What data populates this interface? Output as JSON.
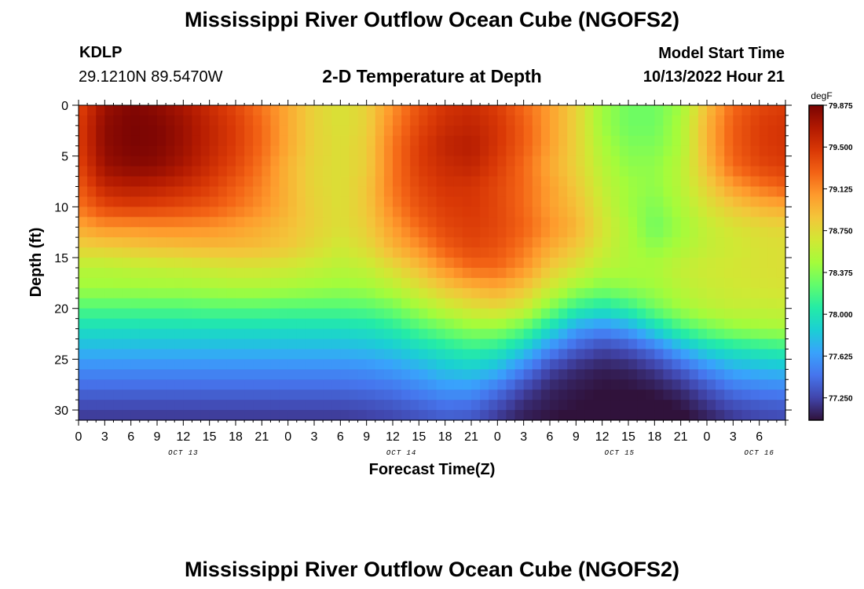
{
  "header": {
    "title": "Mississippi River Outflow Ocean Cube (NGOFS2)",
    "station_id": "KDLP",
    "coordinates": "29.1210N  89.5470W",
    "subtitle": "2-D Temperature at Depth",
    "model_start_label": "Model Start Time",
    "model_start_value": "10/13/2022 Hour 21"
  },
  "footer": {
    "title": "Mississippi River Outflow Ocean Cube (NGOFS2)"
  },
  "chart_data": {
    "type": "heatmap",
    "title": "2-D Temperature at Depth",
    "xlabel": "Forecast Time(Z)",
    "ylabel": "Depth (ft)",
    "x_range_hours": [
      0,
      81
    ],
    "x_tick_labels": [
      "0",
      "3",
      "6",
      "9",
      "12",
      "15",
      "18",
      "21",
      "0",
      "3",
      "6",
      "9",
      "12",
      "15",
      "18",
      "21",
      "0",
      "3",
      "6",
      "9",
      "12",
      "15",
      "18",
      "21",
      "0",
      "3",
      "6"
    ],
    "date_labels": [
      {
        "label": "OCT 13",
        "hour": 12
      },
      {
        "label": "OCT 14",
        "hour": 37
      },
      {
        "label": "OCT 15",
        "hour": 62
      },
      {
        "label": "OCT 16",
        "hour": 78
      }
    ],
    "ylim": [
      0,
      31
    ],
    "y_ticks": [
      0,
      5,
      10,
      15,
      20,
      25,
      30
    ],
    "y_inverted": true,
    "colorbar": {
      "unit": "degF",
      "min": 77.05,
      "max": 79.875,
      "ticks": [
        79.875,
        79.5,
        79.125,
        78.75,
        78.375,
        78.0,
        77.625,
        77.25
      ],
      "tick_labels": [
        "79.875",
        "79.500",
        "79.125",
        "78.750",
        "78.375",
        "78.000",
        "77.625",
        "77.250"
      ],
      "colormap": [
        "#30123b",
        "#4145ab",
        "#4675ed",
        "#39a2fc",
        "#1bcfd4",
        "#24eca6",
        "#61fc6c",
        "#a4fc3b",
        "#d1e834",
        "#f3c63a",
        "#fe9b2d",
        "#f36315",
        "#d93806",
        "#b11901",
        "#7a0403"
      ]
    },
    "time_hours": [
      0,
      3,
      6,
      9,
      12,
      15,
      18,
      21,
      24,
      27,
      30,
      33,
      36,
      39,
      42,
      45,
      48,
      51,
      54,
      57,
      60,
      63,
      66,
      69,
      72,
      75,
      78,
      81
    ],
    "depth_ft": [
      0,
      2,
      4,
      6,
      8,
      10,
      12,
      14,
      16,
      18,
      20,
      22,
      24,
      26,
      28,
      30,
      31
    ],
    "temperature_degF": [
      [
        79.4,
        79.75,
        79.85,
        79.8,
        79.7,
        79.55,
        79.4,
        79.2,
        79.0,
        78.8,
        78.7,
        78.8,
        79.1,
        79.35,
        79.5,
        79.55,
        79.45,
        79.25,
        79.05,
        78.8,
        78.45,
        78.3,
        78.3,
        78.45,
        78.9,
        79.25,
        79.4,
        79.45
      ],
      [
        79.45,
        79.8,
        79.87,
        79.85,
        79.75,
        79.6,
        79.45,
        79.25,
        79.0,
        78.8,
        78.7,
        78.8,
        79.15,
        79.4,
        79.55,
        79.6,
        79.5,
        79.3,
        79.05,
        78.8,
        78.45,
        78.3,
        78.3,
        78.5,
        78.95,
        79.3,
        79.45,
        79.5
      ],
      [
        79.45,
        79.8,
        79.87,
        79.85,
        79.75,
        79.6,
        79.45,
        79.25,
        79.0,
        78.8,
        78.72,
        78.82,
        79.2,
        79.45,
        79.6,
        79.65,
        79.5,
        79.3,
        79.05,
        78.8,
        78.5,
        78.35,
        78.35,
        78.5,
        78.95,
        79.3,
        79.45,
        79.5
      ],
      [
        79.4,
        79.75,
        79.82,
        79.8,
        79.7,
        79.55,
        79.4,
        79.2,
        78.95,
        78.78,
        78.72,
        78.82,
        79.2,
        79.45,
        79.55,
        79.6,
        79.45,
        79.25,
        79.0,
        78.8,
        78.55,
        78.4,
        78.4,
        78.55,
        78.9,
        79.25,
        79.4,
        79.45
      ],
      [
        79.3,
        79.6,
        79.65,
        79.62,
        79.55,
        79.45,
        79.3,
        79.15,
        78.95,
        78.78,
        78.72,
        78.85,
        79.2,
        79.4,
        79.5,
        79.5,
        79.4,
        79.25,
        79.05,
        78.85,
        78.6,
        78.45,
        78.4,
        78.55,
        78.8,
        79.05,
        79.2,
        79.3
      ],
      [
        79.2,
        79.4,
        79.45,
        79.42,
        79.38,
        79.32,
        79.22,
        79.1,
        78.95,
        78.8,
        78.72,
        78.85,
        79.15,
        79.35,
        79.45,
        79.48,
        79.4,
        79.25,
        79.05,
        78.9,
        78.65,
        78.45,
        78.35,
        78.5,
        78.7,
        78.85,
        78.95,
        79.0
      ],
      [
        79.0,
        79.1,
        79.1,
        79.12,
        79.12,
        79.1,
        79.05,
        78.98,
        78.9,
        78.8,
        78.72,
        78.82,
        79.05,
        79.25,
        79.4,
        79.45,
        79.4,
        79.28,
        79.1,
        78.95,
        78.7,
        78.5,
        78.3,
        78.45,
        78.6,
        78.7,
        78.75,
        78.78
      ],
      [
        78.8,
        78.82,
        78.85,
        78.88,
        78.9,
        78.92,
        78.92,
        78.9,
        78.85,
        78.75,
        78.65,
        78.75,
        78.95,
        79.1,
        79.3,
        79.4,
        79.35,
        79.2,
        79.0,
        78.85,
        78.65,
        78.5,
        78.4,
        78.5,
        78.6,
        78.65,
        78.7,
        78.72
      ],
      [
        78.55,
        78.55,
        78.58,
        78.6,
        78.62,
        78.65,
        78.68,
        78.68,
        78.65,
        78.6,
        78.55,
        78.6,
        78.75,
        78.9,
        79.1,
        79.25,
        79.25,
        79.1,
        78.85,
        78.7,
        78.55,
        78.5,
        78.5,
        78.6,
        78.65,
        78.68,
        78.7,
        78.72
      ],
      [
        78.45,
        78.45,
        78.45,
        78.46,
        78.46,
        78.48,
        78.5,
        78.5,
        78.48,
        78.45,
        78.42,
        78.45,
        78.55,
        78.7,
        78.85,
        78.95,
        79.0,
        78.88,
        78.65,
        78.45,
        78.35,
        78.4,
        78.45,
        78.55,
        78.62,
        78.65,
        78.68,
        78.7
      ],
      [
        78.2,
        78.2,
        78.2,
        78.2,
        78.2,
        78.22,
        78.22,
        78.22,
        78.2,
        78.2,
        78.2,
        78.22,
        78.3,
        78.45,
        78.6,
        78.7,
        78.75,
        78.65,
        78.35,
        78.1,
        78.0,
        78.1,
        78.3,
        78.45,
        78.55,
        78.6,
        78.6,
        78.62
      ],
      [
        77.95,
        77.95,
        77.95,
        77.95,
        77.95,
        77.95,
        77.95,
        77.95,
        77.95,
        77.95,
        77.95,
        77.97,
        78.05,
        78.18,
        78.3,
        78.4,
        78.4,
        78.25,
        77.95,
        77.65,
        77.55,
        77.65,
        77.9,
        78.15,
        78.3,
        78.4,
        78.45,
        78.48
      ],
      [
        77.75,
        77.75,
        77.75,
        77.75,
        77.75,
        77.75,
        77.75,
        77.75,
        77.75,
        77.75,
        77.75,
        77.77,
        77.82,
        77.92,
        78.02,
        78.1,
        78.05,
        77.85,
        77.55,
        77.35,
        77.25,
        77.3,
        77.45,
        77.7,
        77.9,
        78.0,
        78.05,
        78.1
      ],
      [
        77.55,
        77.55,
        77.55,
        77.55,
        77.55,
        77.55,
        77.55,
        77.55,
        77.55,
        77.55,
        77.55,
        77.57,
        77.62,
        77.7,
        77.8,
        77.85,
        77.75,
        77.5,
        77.25,
        77.15,
        77.1,
        77.12,
        77.2,
        77.35,
        77.55,
        77.7,
        77.75,
        77.78
      ],
      [
        77.4,
        77.4,
        77.4,
        77.4,
        77.4,
        77.4,
        77.4,
        77.4,
        77.4,
        77.4,
        77.4,
        77.42,
        77.45,
        77.52,
        77.6,
        77.6,
        77.45,
        77.25,
        77.12,
        77.08,
        77.05,
        77.05,
        77.08,
        77.15,
        77.3,
        77.45,
        77.5,
        77.52
      ],
      [
        77.25,
        77.25,
        77.25,
        77.25,
        77.25,
        77.25,
        77.25,
        77.25,
        77.25,
        77.25,
        77.25,
        77.27,
        77.3,
        77.35,
        77.4,
        77.38,
        77.25,
        77.12,
        77.08,
        77.05,
        77.02,
        77.0,
        77.0,
        77.05,
        77.15,
        77.25,
        77.3,
        77.32
      ],
      [
        77.2,
        77.2,
        77.2,
        77.2,
        77.2,
        77.2,
        77.2,
        77.2,
        77.2,
        77.2,
        77.2,
        77.22,
        77.25,
        77.3,
        77.35,
        77.33,
        77.2,
        77.1,
        77.05,
        77.02,
        77.0,
        76.98,
        76.98,
        77.02,
        77.1,
        77.2,
        77.25,
        77.28
      ]
    ]
  }
}
